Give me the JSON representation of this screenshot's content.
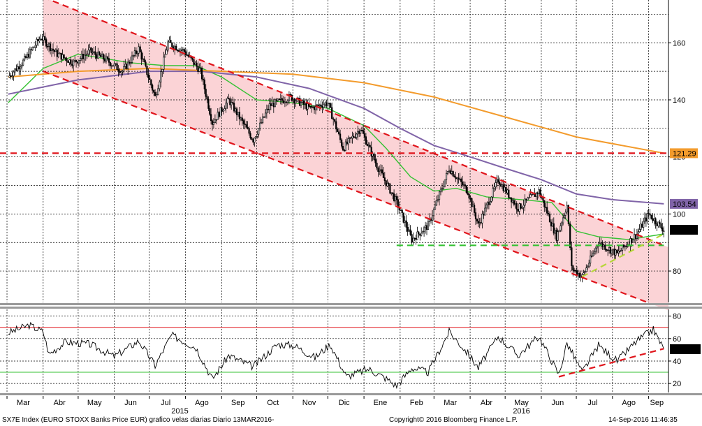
{
  "footer": {
    "left": "SX7E Index (EURO STOXX Banks Price EUR) grafico velas diarias  Diario 13MAR2016-",
    "center": "Copyright© 2016 Bloomberg Finance L.P.",
    "right": "14-Sep-2016 11:46:35"
  },
  "colors": {
    "candles": "#000000",
    "channel_fill": "#fbd3d6",
    "channel_lines": "#e0151c",
    "ma_green": "#35c233",
    "ma_purple": "#8064a8",
    "ma_orange": "#f39b2c",
    "support": "#35c233",
    "resistance": "#e0151c",
    "grid": "#000000"
  },
  "chart_data": [
    {
      "type": "candlestick",
      "name": "price",
      "x_ticks": [
        "Mar",
        "Abr",
        "May",
        "Jun",
        "Jul",
        "Ago",
        "Sep",
        "Oct",
        "Nov",
        "Dic",
        "Ene",
        "Feb",
        "Mar",
        "Abr",
        "May",
        "Jun",
        "Jul",
        "Ago",
        "Sep"
      ],
      "year_labels": [
        "2015",
        "2016"
      ],
      "y_ticks": [
        80,
        100,
        120,
        140,
        160
      ],
      "ylim": [
        69,
        175
      ],
      "price_path": [
        {
          "date": "2015-03-02",
          "value": 148
        },
        {
          "date": "2015-03-16",
          "value": 154
        },
        {
          "date": "2015-03-30",
          "value": 162
        },
        {
          "date": "2015-04-13",
          "value": 156
        },
        {
          "date": "2015-04-27",
          "value": 153
        },
        {
          "date": "2015-05-11",
          "value": 157
        },
        {
          "date": "2015-05-25",
          "value": 154
        },
        {
          "date": "2015-06-08",
          "value": 150
        },
        {
          "date": "2015-06-22",
          "value": 158
        },
        {
          "date": "2015-07-06",
          "value": 141
        },
        {
          "date": "2015-07-17",
          "value": 160
        },
        {
          "date": "2015-07-31",
          "value": 157
        },
        {
          "date": "2015-08-14",
          "value": 150
        },
        {
          "date": "2015-08-24",
          "value": 132
        },
        {
          "date": "2015-09-07",
          "value": 140
        },
        {
          "date": "2015-09-28",
          "value": 126
        },
        {
          "date": "2015-10-12",
          "value": 138
        },
        {
          "date": "2015-10-30",
          "value": 141
        },
        {
          "date": "2015-11-16",
          "value": 137
        },
        {
          "date": "2015-12-01",
          "value": 139
        },
        {
          "date": "2015-12-14",
          "value": 123
        },
        {
          "date": "2015-12-29",
          "value": 130
        },
        {
          "date": "2016-01-12",
          "value": 117
        },
        {
          "date": "2016-01-29",
          "value": 104
        },
        {
          "date": "2016-02-11",
          "value": 91
        },
        {
          "date": "2016-02-25",
          "value": 96
        },
        {
          "date": "2016-03-14",
          "value": 116
        },
        {
          "date": "2016-03-30",
          "value": 108
        },
        {
          "date": "2016-04-08",
          "value": 96
        },
        {
          "date": "2016-04-25",
          "value": 112
        },
        {
          "date": "2016-05-12",
          "value": 102
        },
        {
          "date": "2016-05-30",
          "value": 108
        },
        {
          "date": "2016-06-14",
          "value": 92
        },
        {
          "date": "2016-06-23",
          "value": 103
        },
        {
          "date": "2016-06-27",
          "value": 81
        },
        {
          "date": "2016-07-06",
          "value": 78
        },
        {
          "date": "2016-07-20",
          "value": 90
        },
        {
          "date": "2016-08-05",
          "value": 86
        },
        {
          "date": "2016-08-22",
          "value": 93
        },
        {
          "date": "2016-09-01",
          "value": 100
        },
        {
          "date": "2016-09-14",
          "value": 94.44
        }
      ],
      "moving_averages": [
        {
          "color": "green",
          "points": [
            {
              "date": "2015-03-02",
              "value": 139
            },
            {
              "date": "2015-04-01",
              "value": 151
            },
            {
              "date": "2015-05-01",
              "value": 156
            },
            {
              "date": "2015-06-15",
              "value": 153
            },
            {
              "date": "2015-07-15",
              "value": 152
            },
            {
              "date": "2015-08-10",
              "value": 152
            },
            {
              "date": "2015-09-01",
              "value": 148
            },
            {
              "date": "2015-10-01",
              "value": 140
            },
            {
              "date": "2015-11-01",
              "value": 139
            },
            {
              "date": "2015-12-01",
              "value": 137
            },
            {
              "date": "2016-01-01",
              "value": 131
            },
            {
              "date": "2016-01-20",
              "value": 123
            },
            {
              "date": "2016-02-10",
              "value": 113
            },
            {
              "date": "2016-03-01",
              "value": 108
            },
            {
              "date": "2016-03-20",
              "value": 109
            },
            {
              "date": "2016-04-15",
              "value": 106
            },
            {
              "date": "2016-05-15",
              "value": 105
            },
            {
              "date": "2016-06-10",
              "value": 104
            },
            {
              "date": "2016-07-01",
              "value": 94
            },
            {
              "date": "2016-07-20",
              "value": 92
            },
            {
              "date": "2016-08-15",
              "value": 91
            },
            {
              "date": "2016-09-14",
              "value": 93
            }
          ]
        },
        {
          "color": "purple",
          "points": [
            {
              "date": "2015-03-02",
              "value": 142
            },
            {
              "date": "2015-05-01",
              "value": 147
            },
            {
              "date": "2015-07-01",
              "value": 150
            },
            {
              "date": "2015-08-15",
              "value": 150
            },
            {
              "date": "2015-10-01",
              "value": 148
            },
            {
              "date": "2015-11-15",
              "value": 144
            },
            {
              "date": "2016-01-01",
              "value": 137
            },
            {
              "date": "2016-02-01",
              "value": 130
            },
            {
              "date": "2016-03-01",
              "value": 124
            },
            {
              "date": "2016-04-01",
              "value": 120
            },
            {
              "date": "2016-05-01",
              "value": 116
            },
            {
              "date": "2016-06-01",
              "value": 112
            },
            {
              "date": "2016-07-01",
              "value": 107
            },
            {
              "date": "2016-08-01",
              "value": 105
            },
            {
              "date": "2016-09-14",
              "value": 103.54
            }
          ]
        },
        {
          "color": "orange",
          "points": [
            {
              "date": "2015-03-02",
              "value": 148
            },
            {
              "date": "2015-05-01",
              "value": 150
            },
            {
              "date": "2015-07-01",
              "value": 151
            },
            {
              "date": "2015-09-01",
              "value": 150
            },
            {
              "date": "2015-11-01",
              "value": 149
            },
            {
              "date": "2016-01-01",
              "value": 146
            },
            {
              "date": "2016-03-01",
              "value": 141
            },
            {
              "date": "2016-05-01",
              "value": 134
            },
            {
              "date": "2016-07-01",
              "value": 127
            },
            {
              "date": "2016-09-14",
              "value": 121.29
            }
          ]
        }
      ],
      "channel": {
        "upper": [
          {
            "date": "2015-04-01",
            "value": 176
          },
          {
            "date": "2016-09-14",
            "value": 89
          }
        ],
        "lower": [
          {
            "date": "2015-04-01",
            "value": 150
          },
          {
            "date": "2016-08-31",
            "value": 69
          }
        ]
      },
      "horizontal_levels": [
        {
          "label": "121.29",
          "value": 121.29,
          "style": "dashed",
          "color": "red"
        },
        {
          "value": 89,
          "style": "dashed",
          "color": "green",
          "from": "2016-01-29",
          "to": "2016-09-14"
        }
      ],
      "support_trendline": [
        {
          "date": "2016-07-06",
          "value": 78
        },
        {
          "date": "2016-09-14",
          "value": 93
        }
      ],
      "value_tags": [
        {
          "label": "121.29",
          "value": 121.29,
          "color": "orange"
        },
        {
          "label": "103.54",
          "value": 103.54,
          "color": "purple"
        },
        {
          "label": "94.44",
          "value": 94.44,
          "color": "black"
        }
      ]
    },
    {
      "type": "line",
      "name": "rsi",
      "y_ticks": [
        20,
        40,
        60,
        80
      ],
      "ylim": [
        12,
        86
      ],
      "levels": [
        70,
        30
      ],
      "points": [
        {
          "date": "2015-03-02",
          "value": 65
        },
        {
          "date": "2015-03-20",
          "value": 72
        },
        {
          "date": "2015-04-01",
          "value": 66
        },
        {
          "date": "2015-04-06",
          "value": 46
        },
        {
          "date": "2015-04-20",
          "value": 57
        },
        {
          "date": "2015-05-11",
          "value": 55
        },
        {
          "date": "2015-06-01",
          "value": 44
        },
        {
          "date": "2015-06-22",
          "value": 58
        },
        {
          "date": "2015-07-06",
          "value": 36
        },
        {
          "date": "2015-07-20",
          "value": 63
        },
        {
          "date": "2015-08-10",
          "value": 52
        },
        {
          "date": "2015-08-24",
          "value": 24
        },
        {
          "date": "2015-09-07",
          "value": 45
        },
        {
          "date": "2015-09-28",
          "value": 35
        },
        {
          "date": "2015-10-19",
          "value": 55
        },
        {
          "date": "2015-11-02",
          "value": 54
        },
        {
          "date": "2015-11-20",
          "value": 43
        },
        {
          "date": "2015-12-03",
          "value": 55
        },
        {
          "date": "2015-12-17",
          "value": 26
        },
        {
          "date": "2016-01-05",
          "value": 33
        },
        {
          "date": "2016-01-19",
          "value": 25
        },
        {
          "date": "2016-01-29",
          "value": 18
        },
        {
          "date": "2016-02-11",
          "value": 34
        },
        {
          "date": "2016-02-25",
          "value": 30
        },
        {
          "date": "2016-03-14",
          "value": 66
        },
        {
          "date": "2016-03-30",
          "value": 47
        },
        {
          "date": "2016-04-08",
          "value": 34
        },
        {
          "date": "2016-04-25",
          "value": 62
        },
        {
          "date": "2016-05-12",
          "value": 45
        },
        {
          "date": "2016-05-30",
          "value": 62
        },
        {
          "date": "2016-06-16",
          "value": 28
        },
        {
          "date": "2016-06-23",
          "value": 56
        },
        {
          "date": "2016-07-06",
          "value": 30
        },
        {
          "date": "2016-07-20",
          "value": 54
        },
        {
          "date": "2016-08-05",
          "value": 40
        },
        {
          "date": "2016-08-22",
          "value": 58
        },
        {
          "date": "2016-09-05",
          "value": 68
        },
        {
          "date": "2016-09-14",
          "value": 50.592
        }
      ],
      "support_trendline": [
        {
          "date": "2016-06-16",
          "value": 26
        },
        {
          "date": "2016-09-14",
          "value": 51
        }
      ],
      "value_tags": [
        {
          "label": "50.592",
          "value": 50.592,
          "color": "black"
        }
      ]
    }
  ]
}
